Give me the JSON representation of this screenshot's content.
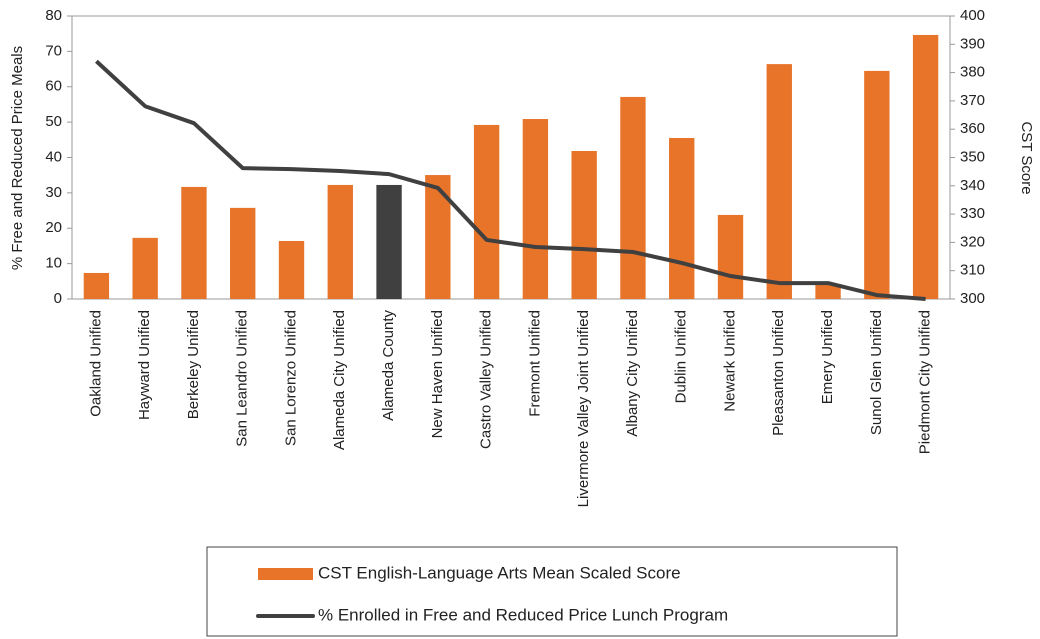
{
  "chart_data": {
    "type": "bar-line",
    "categories": [
      "Oakland Unified",
      "Hayward Unified",
      "Berkeley Unified",
      "San Leandro Unified",
      "San Lorenzo Unified",
      "Alameda City Unified",
      "Alameda County",
      "New Haven Unified",
      "Castro Valley Unified",
      "Fremont Unified",
      "Livermore Valley Joint Unified",
      "Albany City Unified",
      "Dublin Unified",
      "Newark Unified",
      "Pleasanton Unified",
      "Emery Unified",
      "Sunol Glen Unified",
      "Piedmont City Unified"
    ],
    "series": [
      {
        "name": "CST English-Language Arts Mean Scaled Score",
        "type": "bar",
        "axis": "y2",
        "color": "#e8742a",
        "colors": [
          "#e8742a",
          "#e8742a",
          "#e8742a",
          "#e8742a",
          "#e8742a",
          "#e8742a",
          "#404040",
          "#e8742a",
          "#e8742a",
          "#e8742a",
          "#e8742a",
          "#e8742a",
          "#e8742a",
          "#e8742a",
          "#e8742a",
          "#e8742a",
          "#e8742a",
          "#e8742a"
        ],
        "values": [
          309.2,
          321.6,
          339.6,
          332.2,
          320.5,
          340.3,
          340.3,
          343.8,
          361.5,
          363.6,
          352.3,
          371.4,
          356.9,
          329.7,
          383.0,
          305.3,
          380.6,
          393.3
        ]
      },
      {
        "name": "% Enrolled in Free and Reduced Price Lunch Program",
        "type": "line",
        "axis": "y",
        "color": "#404040",
        "values": [
          67.2,
          54.5,
          49.7,
          37.0,
          36.7,
          36.2,
          35.3,
          31.4,
          16.7,
          14.7,
          14.1,
          13.3,
          10.2,
          6.5,
          4.5,
          4.5,
          1.1,
          0
        ]
      }
    ],
    "ylabel": "% Free and Reduced Price Meals",
    "y2label": "CST Score",
    "ylim": [
      0,
      80
    ],
    "yticks": [
      0,
      10,
      20,
      30,
      40,
      50,
      60,
      70,
      80
    ],
    "y2lim": [
      300,
      400
    ],
    "y2ticks": [
      300,
      310,
      320,
      330,
      340,
      350,
      360,
      370,
      380,
      390,
      400
    ]
  }
}
